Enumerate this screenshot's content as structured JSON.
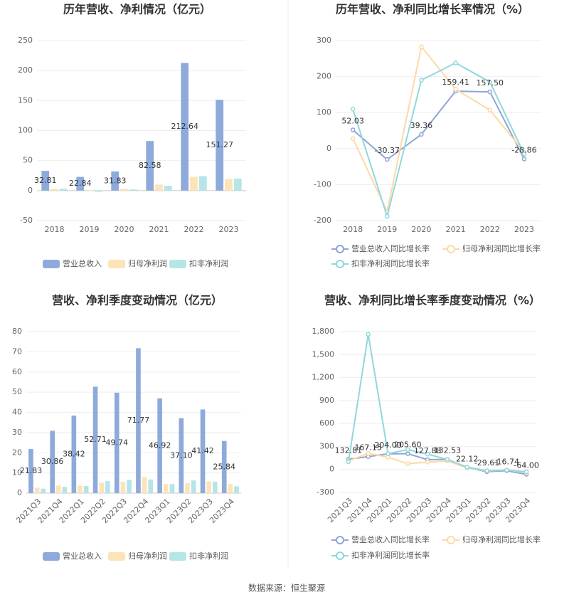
{
  "chart_data": [
    {
      "type": "bar",
      "title": "历年营收、净利情况（亿元）",
      "categories": [
        "2018",
        "2019",
        "2020",
        "2021",
        "2022",
        "2023"
      ],
      "series": [
        {
          "name": "营业总收入",
          "color": "#8eaadb",
          "values": [
            32.81,
            22.84,
            31.83,
            82.58,
            212.64,
            151.27
          ],
          "data_labels": true
        },
        {
          "name": "归母净利润",
          "color": "#fde3b8",
          "values": [
            3,
            -1,
            3,
            10,
            23,
            19
          ]
        },
        {
          "name": "扣非净利润",
          "color": "#b5e5e7",
          "values": [
            3,
            -2,
            2,
            8,
            24,
            20
          ]
        }
      ],
      "ylim": [
        -50,
        250
      ],
      "yticks": [
        -50,
        0,
        50,
        100,
        150,
        200,
        250
      ],
      "grid": true
    },
    {
      "type": "line",
      "title": "历年营收、净利同比增长率情况（%）",
      "categories": [
        "2018",
        "2019",
        "2020",
        "2021",
        "2022",
        "2023"
      ],
      "series": [
        {
          "name": "营业总收入同比增长率",
          "color": "#8fa5d6",
          "values": [
            52.03,
            -30.37,
            39.36,
            159.41,
            157.5,
            -28.86
          ],
          "value_labels": [
            "52.03",
            "-30.37",
            "39.36",
            "159.41",
            "157.50",
            "-28.86"
          ],
          "data_labels": true
        },
        {
          "name": "归母净利润同比增长率",
          "color": "#fdd9a6",
          "values": [
            28,
            -175,
            283,
            165,
            107,
            -10
          ]
        },
        {
          "name": "扣非净利润同比增长率",
          "color": "#8fd8dd",
          "values": [
            110,
            -188,
            190,
            238,
            185,
            -15
          ]
        }
      ],
      "ylim": [
        -200,
        300
      ],
      "yticks": [
        -200,
        -100,
        0,
        100,
        200,
        300
      ],
      "grid": true
    },
    {
      "type": "bar",
      "title": "营收、净利季度变动情况（亿元）",
      "categories": [
        "2021Q3",
        "2021Q4",
        "2022Q1",
        "2022Q2",
        "2022Q3",
        "2022Q4",
        "2023Q1",
        "2023Q2",
        "2023Q3",
        "2023Q4"
      ],
      "xlabel_rotation": -45,
      "series": [
        {
          "name": "营业总收入",
          "color": "#8eaadb",
          "values": [
            21.83,
            30.86,
            38.42,
            52.71,
            49.74,
            71.77,
            46.92,
            37.1,
            41.42,
            25.84
          ],
          "value_labels": [
            "21.83",
            "30.86",
            "38.42",
            "52.71",
            "49.74",
            "71.77",
            "46.92",
            "37.10",
            "41.42",
            "25.84"
          ],
          "data_labels": true
        },
        {
          "name": "归母净利润",
          "color": "#fde3b8",
          "values": [
            2.7,
            3.8,
            3.8,
            5.2,
            5.6,
            8.0,
            4.5,
            5.0,
            5.8,
            4.5
          ]
        },
        {
          "name": "扣非净利润",
          "color": "#b5e5e7",
          "values": [
            2.2,
            3.1,
            3.5,
            6.0,
            6.6,
            6.8,
            4.5,
            6.3,
            5.6,
            3.4
          ]
        }
      ],
      "ylim": [
        0,
        80
      ],
      "yticks": [
        0,
        10,
        20,
        30,
        40,
        50,
        60,
        70,
        80
      ],
      "grid": true
    },
    {
      "type": "line",
      "title": "营收、净利同比增长率季度变动情况（%）",
      "categories": [
        "2021Q3",
        "2021Q4",
        "2022Q1",
        "2022Q2",
        "2022Q3",
        "2022Q4",
        "2023Q1",
        "2023Q2",
        "2023Q3",
        "2023Q4"
      ],
      "xlabel_rotation": -45,
      "series": [
        {
          "name": "营业总收入同比增长率",
          "color": "#8fa5d6",
          "values": [
            132.81,
            167.15,
            204,
            205.6,
            127.88,
            132.53,
            22.12,
            -29.61,
            -16.74,
            -64
          ],
          "value_labels": [
            "132.81",
            "167.15",
            "204.00",
            "205.60",
            "127.88",
            "132.53",
            "22.12",
            "-29.61",
            "-16.74",
            "-64.00"
          ],
          "data_labels": true
        },
        {
          "name": "归母净利润同比增长率",
          "color": "#fdd9a6",
          "values": [
            110,
            210,
            160,
            75,
            95,
            110,
            20,
            -20,
            -5,
            -45
          ]
        },
        {
          "name": "扣非净利润同比增长率",
          "color": "#8fd8dd",
          "values": [
            100,
            1765,
            205,
            260,
            200,
            130,
            30,
            -15,
            -10,
            -30
          ]
        }
      ],
      "ylim": [
        -300,
        1800
      ],
      "yticks": [
        -300,
        0,
        300,
        600,
        900,
        {
          "value": 1200,
          "label": "1,200"
        },
        {
          "value": 1500,
          "label": "1,500"
        },
        {
          "value": 1800,
          "label": "1,800"
        }
      ],
      "grid": true
    }
  ],
  "source": "数据来源：恒生聚源"
}
